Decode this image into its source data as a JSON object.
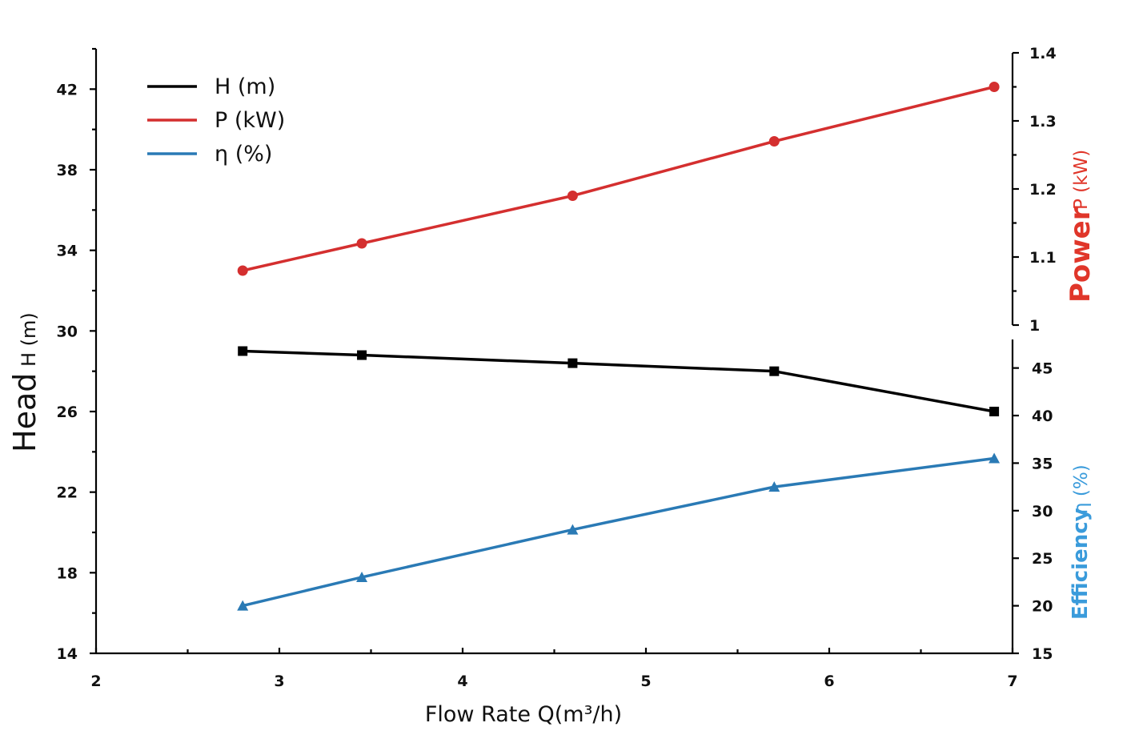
{
  "chart_data": {
    "type": "line",
    "x": [
      2.8,
      3.45,
      4.6,
      5.7,
      6.9
    ],
    "xlabel": "Flow Rate Q(m³/h)",
    "xlim": [
      2,
      7
    ],
    "xticks": [
      2,
      3,
      4,
      5,
      6,
      7
    ],
    "axes": {
      "head": {
        "label_main": "Head",
        "label_sub": "H  (m)",
        "range": [
          14,
          44
        ],
        "ticks": [
          14,
          18,
          22,
          26,
          30,
          34,
          38,
          42
        ]
      },
      "power": {
        "label_main": "Power",
        "label_sub": "P (kW)",
        "range": [
          1,
          1.4
        ],
        "ticks": [
          "1",
          "1.1",
          "1.2",
          "1.3",
          "1.4"
        ]
      },
      "efficiency": {
        "label_main": "Efficiency",
        "label_sub": "η (%)",
        "range": [
          15,
          48
        ],
        "ticks": [
          15,
          20,
          25,
          30,
          35,
          40,
          45
        ]
      }
    },
    "series": [
      {
        "name": "H  (m)",
        "axis": "head",
        "color": "#000000",
        "marker": "square",
        "values": [
          29.0,
          28.8,
          28.4,
          28.0,
          26.0
        ]
      },
      {
        "name": "P (kW)",
        "axis": "power",
        "color": "#d42f2f",
        "marker": "circle",
        "values": [
          1.08,
          1.12,
          1.19,
          1.27,
          1.35
        ]
      },
      {
        "name": "η (%)",
        "axis": "efficiency",
        "color": "#2a7ab5",
        "marker": "triangle",
        "values": [
          20.0,
          23.0,
          28.0,
          32.5,
          35.5
        ]
      }
    ],
    "legend_position": "top-left",
    "colors": {
      "power_label": "#e0362a",
      "efficiency_label": "#3a9bdb",
      "axis": "#000000"
    }
  }
}
